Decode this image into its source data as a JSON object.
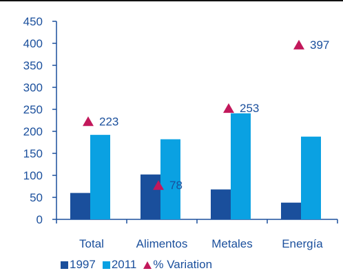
{
  "chart_data": {
    "type": "bar",
    "categories": [
      "Total",
      "Alimentos",
      "Metales",
      "Energía"
    ],
    "series": [
      {
        "name": "1997",
        "values": [
          60,
          102,
          68,
          38
        ],
        "color": "#1a4f9c"
      },
      {
        "name": "2011",
        "values": [
          192,
          182,
          241,
          188
        ],
        "color": "#0aa1e2"
      }
    ],
    "markers": {
      "name": "% Variation",
      "values": [
        223,
        78,
        253,
        397
      ],
      "labels": [
        "223",
        "78",
        "253",
        "397"
      ],
      "color": "#c2185b",
      "shape": "triangle"
    },
    "yticks": [
      "0",
      "50",
      "100",
      "150",
      "200",
      "250",
      "300",
      "350",
      "400",
      "450"
    ],
    "ylim": [
      0,
      450
    ],
    "grid": false,
    "legend_position": "bottom"
  },
  "legend": {
    "item_1997": "1997",
    "item_2011": "2011",
    "item_variation": "% Variation"
  }
}
